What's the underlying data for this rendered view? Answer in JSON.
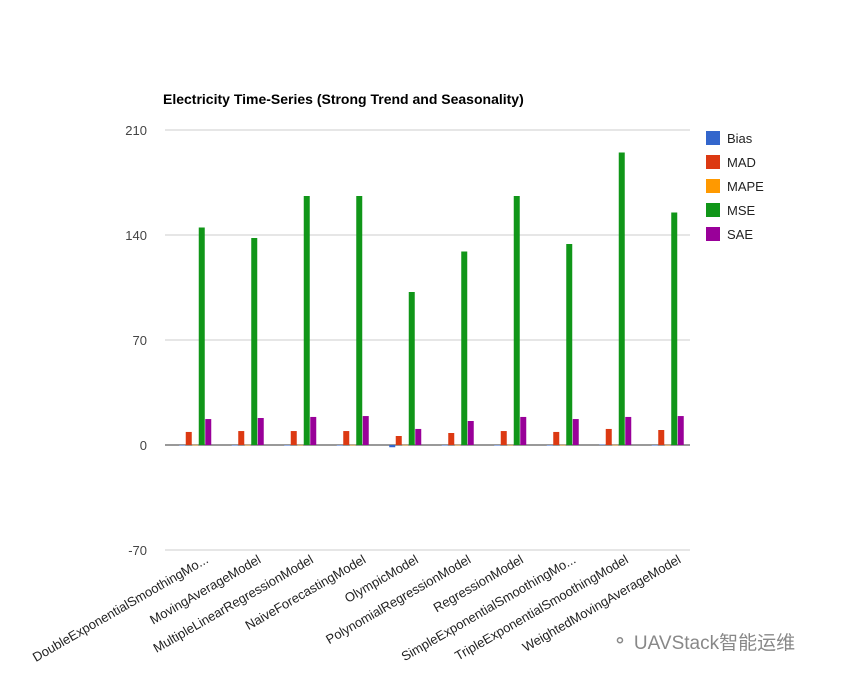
{
  "chart_data": {
    "type": "bar",
    "title": "Electricity Time-Series (Strong Trend and Seasonality)",
    "xlabel": "",
    "ylabel": "",
    "ylim": [
      -70,
      210
    ],
    "yticks": [
      "210",
      "140",
      "70",
      "0",
      "-70"
    ],
    "ytick_values": [
      210,
      140,
      70,
      0,
      -70
    ],
    "grid": true,
    "legend_position": "right",
    "categories": [
      "DoubleExponentialSmoothingMo...",
      "MovingAverageModel",
      "MultipleLinearRegressionModel",
      "NaiveForecastingModel",
      "OlympicModel",
      "PolynomialRegressionModel",
      "RegressionModel",
      "SimpleExponentialSmoothingMo...",
      "TripleExponentialSmoothingModel",
      "WeightedMovingAverageModel"
    ],
    "series": [
      {
        "name": "Bias",
        "color": "#3366cc",
        "values": [
          0,
          0,
          0,
          0,
          -1.5,
          0,
          0,
          0,
          0.3,
          0
        ]
      },
      {
        "name": "MAD",
        "color": "#dc3912",
        "values": [
          8.7,
          9.3,
          9.3,
          9.3,
          6,
          8,
          9.3,
          8.7,
          10.7,
          10
        ]
      },
      {
        "name": "MAPE",
        "color": "#ff9900",
        "values": [
          0.1,
          0.1,
          0.1,
          0.1,
          0.1,
          0.1,
          0.1,
          0.1,
          0.1,
          0.1
        ]
      },
      {
        "name": "MSE",
        "color": "#109618",
        "values": [
          145,
          138,
          166,
          166,
          102,
          129,
          166,
          134,
          195,
          155
        ]
      },
      {
        "name": "SAE",
        "color": "#990099",
        "values": [
          17.3,
          18,
          18.7,
          19.3,
          10.7,
          16,
          18.7,
          17.3,
          18.7,
          19.3
        ]
      }
    ]
  },
  "watermark": "UAVStack智能运维"
}
